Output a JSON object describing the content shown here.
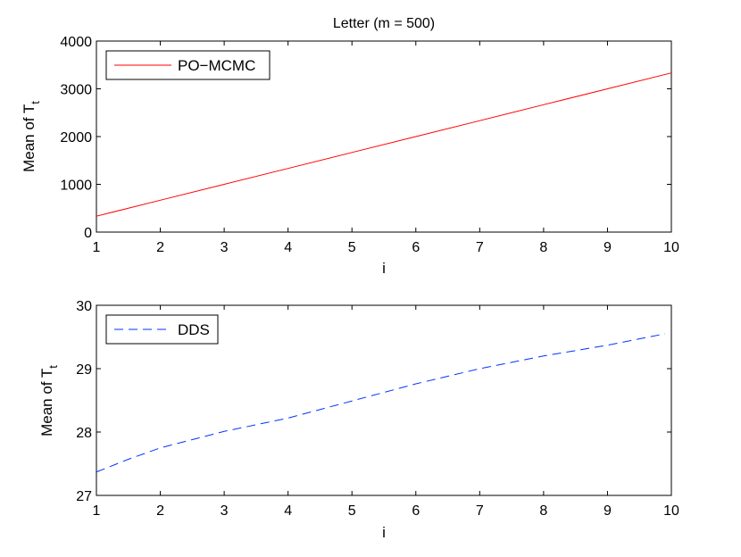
{
  "chart_data": [
    {
      "type": "line",
      "title": "Letter (m = 500)",
      "xlabel": "i",
      "ylabel_main": "Mean of T",
      "ylabel_sub": "t",
      "xlim": [
        1,
        10
      ],
      "ylim": [
        0,
        4000
      ],
      "xticks": [
        1,
        2,
        3,
        4,
        5,
        6,
        7,
        8,
        9,
        10
      ],
      "yticks": [
        0,
        1000,
        2000,
        3000,
        4000
      ],
      "legend_position": "top-left",
      "series": [
        {
          "name": "PO−MCMC",
          "color": "#ff0000",
          "dash": "solid",
          "x": [
            1,
            2,
            3,
            4,
            5,
            6,
            7,
            8,
            9,
            10
          ],
          "y": [
            333,
            667,
            1000,
            1333,
            1667,
            2000,
            2333,
            2667,
            3000,
            3333
          ]
        }
      ]
    },
    {
      "type": "line",
      "title": "",
      "xlabel": "i",
      "ylabel_main": "Mean of T",
      "ylabel_sub": "t",
      "xlim": [
        1,
        10
      ],
      "ylim": [
        27,
        30
      ],
      "xticks": [
        1,
        2,
        3,
        4,
        5,
        6,
        7,
        8,
        9,
        10
      ],
      "yticks": [
        27,
        28,
        29,
        30
      ],
      "legend_position": "top-left",
      "series": [
        {
          "name": "DDS",
          "color": "#0033ff",
          "dash": "dashed",
          "x": [
            1,
            1.5,
            2,
            3,
            4,
            5,
            6,
            7,
            8,
            9,
            9.9
          ],
          "y": [
            27.37,
            27.57,
            27.75,
            28.01,
            28.22,
            28.49,
            28.76,
            29.0,
            29.2,
            29.37,
            29.55
          ]
        }
      ]
    }
  ]
}
